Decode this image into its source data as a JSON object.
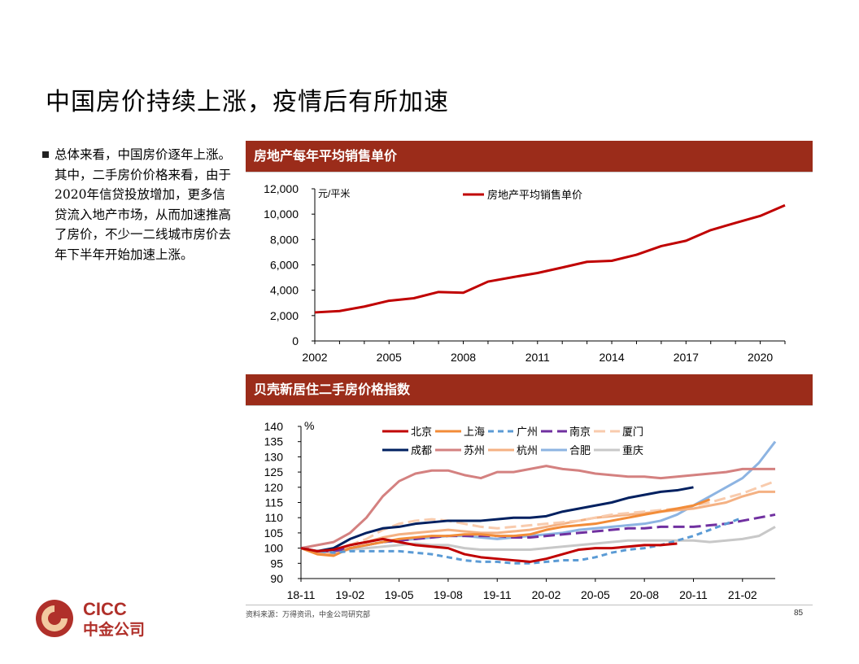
{
  "slide": {
    "title": "中国房价持续上涨，疫情后有所加速",
    "bullet": "总体来看，中国房价逐年上涨。其中，二手房价价格来看，由于2020年信贷投放增加，更多信贷流入地产市场，从而加速推高了房价，不少一二线城市房价去年下半年开始加速上涨。"
  },
  "footer": {
    "source": "资料来源：万得资讯，中金公司研究部",
    "page_number": "85",
    "logo_text": "CICC",
    "logo_subtext": "中金公司"
  },
  "colors": {
    "header_bg": "#9b2c1a",
    "price_line": "#c00000"
  },
  "chart_data": [
    {
      "type": "line",
      "panel_title": "房地产每年平均销售单价",
      "unit_label": "元/平米",
      "legend": [
        "房地产平均销售单价"
      ],
      "x": [
        2002,
        2003,
        2004,
        2005,
        2006,
        2007,
        2008,
        2009,
        2010,
        2011,
        2012,
        2013,
        2014,
        2015,
        2016,
        2017,
        2018,
        2019,
        2020,
        2021
      ],
      "series": [
        {
          "name": "房地产平均销售单价",
          "values": [
            2250,
            2360,
            2710,
            3170,
            3370,
            3860,
            3800,
            4680,
            5030,
            5360,
            5790,
            6240,
            6320,
            6800,
            7480,
            7900,
            8740,
            9310,
            9860,
            10700
          ]
        }
      ],
      "xticks": [
        "2002",
        "2005",
        "2008",
        "2011",
        "2014",
        "2017",
        "2020"
      ],
      "yticks": [
        "0",
        "2,000",
        "4,000",
        "6,000",
        "8,000",
        "10,000",
        "12,000"
      ],
      "ylim": [
        0,
        12000
      ],
      "xlim": [
        2002,
        2021
      ]
    },
    {
      "type": "line",
      "panel_title": "贝壳新居住二手房价格指数",
      "unit_label": "%",
      "legend": [
        "北京",
        "上海",
        "广州",
        "南京",
        "厦门",
        "成都",
        "苏州",
        "杭州",
        "合肥",
        "重庆"
      ],
      "xticks": [
        "18-11",
        "19-02",
        "19-05",
        "19-08",
        "19-11",
        "20-02",
        "20-05",
        "20-08",
        "20-11",
        "21-02"
      ],
      "yticks": [
        "90",
        "95",
        "100",
        "105",
        "110",
        "115",
        "120",
        "125",
        "130",
        "135",
        "140"
      ],
      "ylim": [
        90,
        140
      ],
      "xlim": [
        0,
        29
      ],
      "series": [
        {
          "name": "北京",
          "color": "#c00000",
          "dash": "solid",
          "values": [
            100,
            99,
            99.5,
            101,
            102,
            103,
            102,
            101,
            100.5,
            100,
            98,
            97,
            96.5,
            96,
            95.5,
            96.5,
            98,
            99.5,
            100,
            100,
            100.5,
            101,
            101,
            101.5,
            null,
            null,
            null,
            null,
            null,
            null
          ]
        },
        {
          "name": "上海",
          "color": "#f28c38",
          "dash": "solid",
          "values": [
            100,
            98,
            97.5,
            100,
            101,
            102,
            103,
            103.5,
            104,
            104,
            104.5,
            104.5,
            104,
            104,
            104.5,
            106,
            107,
            107.5,
            108,
            109,
            110,
            111,
            112,
            113,
            114,
            116,
            null,
            null,
            null,
            null
          ]
        },
        {
          "name": "广州",
          "color": "#5b9bd5",
          "dash": "dash",
          "values": [
            100,
            99,
            98.5,
            99,
            99,
            99,
            99,
            98.5,
            98,
            97,
            96,
            95.5,
            95.5,
            95,
            95,
            95.5,
            96,
            96,
            97,
            98.5,
            99.5,
            100,
            101,
            102.5,
            104,
            106,
            108,
            110,
            null,
            null
          ]
        },
        {
          "name": "南京",
          "color": "#7030a0",
          "dash": "longdash",
          "values": [
            100,
            99,
            99,
            100,
            101,
            102,
            102.5,
            103,
            103.5,
            104,
            104,
            104,
            104,
            103.5,
            103.5,
            104,
            104.5,
            105,
            105.5,
            106,
            106.5,
            106.5,
            107,
            107,
            107,
            107.5,
            108,
            109,
            110,
            111
          ]
        },
        {
          "name": "厦门",
          "color": "#f8cbad",
          "dash": "longdash",
          "values": [
            100,
            99,
            98.5,
            101,
            103,
            106,
            108,
            109,
            109.5,
            109,
            108,
            107,
            106.5,
            107,
            107.5,
            108,
            108.5,
            109,
            110,
            111,
            111.5,
            112,
            112.5,
            113,
            114,
            115,
            116.5,
            118,
            120,
            122
          ]
        },
        {
          "name": "成都",
          "color": "#002060",
          "dash": "solid",
          "values": [
            100,
            99,
            100,
            103,
            105,
            106.5,
            107,
            108,
            108.5,
            109,
            109,
            109,
            109.5,
            110,
            110,
            110.5,
            112,
            113,
            114,
            115,
            116.5,
            117.5,
            118.5,
            119,
            120,
            null,
            null,
            null,
            null,
            null
          ]
        },
        {
          "name": "苏州",
          "color": "#d48180",
          "dash": "solid",
          "values": [
            100,
            101,
            102,
            105,
            110,
            117,
            122,
            124.5,
            125.5,
            125.5,
            124,
            123,
            125,
            125,
            126,
            127,
            126,
            125.5,
            124.5,
            124,
            123.5,
            123.5,
            123,
            123.5,
            124,
            124.5,
            125,
            126,
            126,
            126
          ]
        },
        {
          "name": "杭州",
          "color": "#f4b183",
          "dash": "solid",
          "values": [
            100,
            98.5,
            98,
            101,
            102,
            103.5,
            104.5,
            105,
            105.5,
            106,
            105.5,
            105,
            105,
            105.5,
            106,
            107,
            108,
            109,
            110,
            110.5,
            111,
            111.5,
            112,
            112.5,
            113,
            114,
            115,
            117,
            118.5,
            118.5
          ]
        },
        {
          "name": "合肥",
          "color": "#8db4e2",
          "dash": "solid",
          "values": [
            100,
            99,
            99,
            100,
            101,
            102,
            102.5,
            103,
            103.5,
            104,
            104,
            103.5,
            103,
            103.5,
            104,
            104.5,
            105,
            106,
            106.5,
            107,
            107.5,
            108,
            109,
            111,
            114,
            117,
            120,
            123,
            128,
            135
          ]
        },
        {
          "name": "重庆",
          "color": "#c8c8c8",
          "dash": "solid",
          "values": [
            100,
            99,
            99,
            99.5,
            100,
            100.5,
            101,
            101.5,
            101,
            101,
            100,
            99.5,
            99.5,
            99.5,
            99.5,
            100,
            100.5,
            101,
            101.5,
            102,
            102.5,
            102.5,
            102.5,
            102.5,
            102.5,
            102,
            102.5,
            103,
            104,
            107
          ]
        }
      ]
    }
  ]
}
